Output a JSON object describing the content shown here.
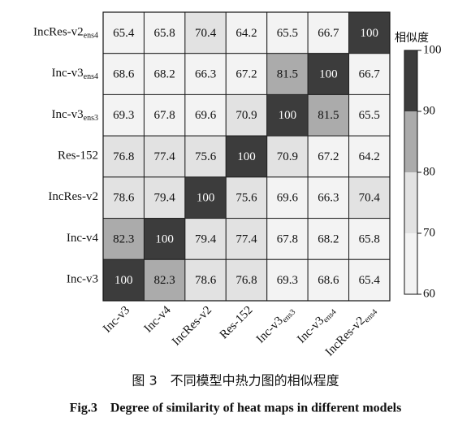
{
  "chart_data": {
    "type": "heatmap",
    "x_categories": [
      [
        "Inc-v3"
      ],
      [
        "Inc-v4"
      ],
      [
        "IncRes-v2"
      ],
      [
        "Res-152"
      ],
      [
        "Inc-v3",
        "ens3"
      ],
      [
        "Inc-v3",
        "ens4"
      ],
      [
        "IncRes-v2",
        "ens4"
      ]
    ],
    "y_categories": [
      [
        "IncRes-v2",
        "ens4"
      ],
      [
        "Inc-v3",
        "ens4"
      ],
      [
        "Inc-v3",
        "ens3"
      ],
      [
        "Res-152"
      ],
      [
        "IncRes-v2"
      ],
      [
        "Inc-v4"
      ],
      [
        "Inc-v3"
      ]
    ],
    "values": [
      [
        65.4,
        65.8,
        70.4,
        64.2,
        65.5,
        66.7,
        100
      ],
      [
        68.6,
        68.2,
        66.3,
        67.2,
        81.5,
        100,
        66.7
      ],
      [
        69.3,
        67.8,
        69.6,
        70.9,
        100,
        81.5,
        65.5
      ],
      [
        76.8,
        77.4,
        75.6,
        100,
        70.9,
        67.2,
        64.2
      ],
      [
        78.6,
        79.4,
        100,
        75.6,
        69.6,
        66.3,
        70.4
      ],
      [
        82.3,
        100,
        79.4,
        77.4,
        67.8,
        68.2,
        65.8
      ],
      [
        100,
        82.3,
        78.6,
        76.8,
        69.3,
        68.6,
        65.4
      ]
    ],
    "colorbar_title": "相似度",
    "clim": [
      60,
      100
    ],
    "cticks": [
      60,
      70,
      80,
      90,
      100
    ],
    "colors": [
      "#f3f3f3",
      "#e2e2e2",
      "#ababab",
      "#3c3c3c"
    ],
    "caption_cn": "图 3　不同模型中热力图的相似程度",
    "caption_en": "Fig.3　Degree of similarity of heat maps in different models"
  }
}
